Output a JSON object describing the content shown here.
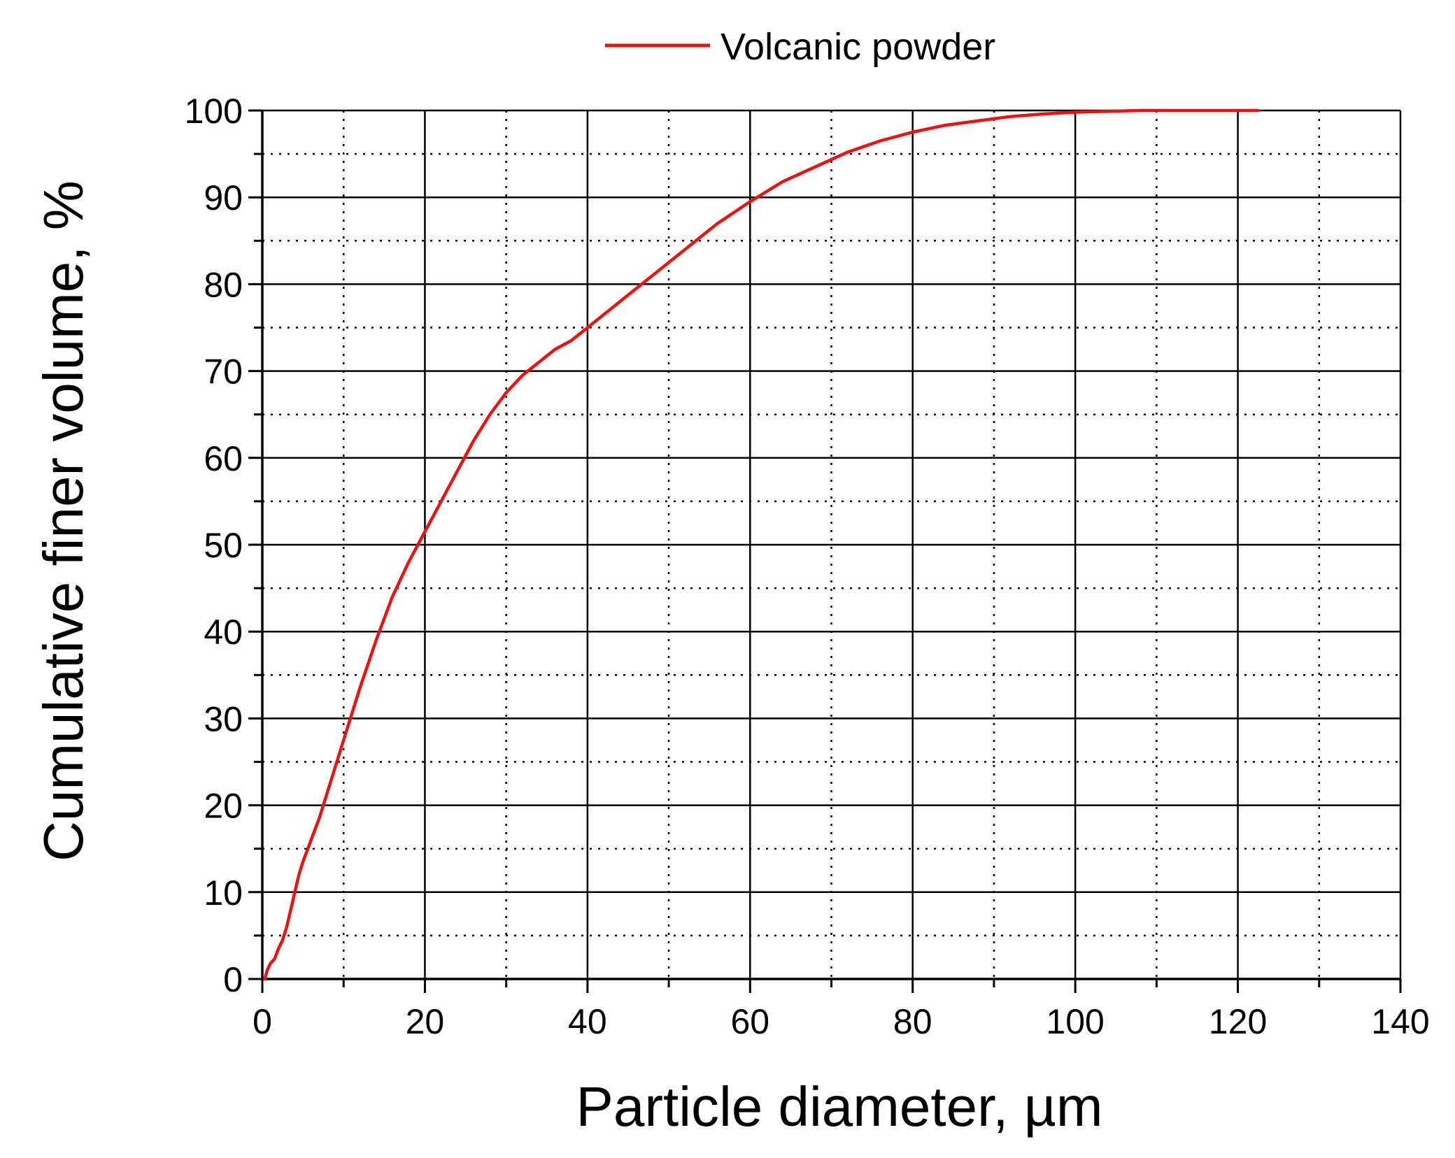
{
  "chart_data": {
    "type": "line",
    "xlabel": "Particle diameter, µm",
    "ylabel": "Cumulative finer volume, %",
    "xlim": [
      0,
      140
    ],
    "ylim": [
      0,
      100
    ],
    "x_ticks": [
      0,
      20,
      40,
      60,
      80,
      100,
      120,
      140
    ],
    "y_ticks": [
      0,
      10,
      20,
      30,
      40,
      50,
      60,
      70,
      80,
      90,
      100
    ],
    "x_tick_labels": [
      "0",
      "20",
      "40",
      "60",
      "80",
      "100",
      "120",
      "140"
    ],
    "y_tick_labels": [
      "0",
      "10",
      "20",
      "30",
      "40",
      "50",
      "60",
      "70",
      "80",
      "90",
      "100"
    ],
    "grid": {
      "major": "solid",
      "minor": "dotted"
    },
    "legend": {
      "position": "top-center"
    },
    "series": [
      {
        "name": "Volcanic powder",
        "color": "#ee1111",
        "x": [
          0.3,
          0.6,
          1.0,
          1.5,
          2.0,
          2.5,
          3.0,
          3.5,
          4.0,
          4.5,
          5.0,
          6.0,
          7.0,
          8.0,
          9.0,
          10.0,
          12.0,
          14.0,
          16.0,
          18.0,
          20.0,
          22.0,
          24.0,
          26.0,
          28.0,
          30.0,
          32.0,
          34.0,
          36.0,
          38.0,
          40.0,
          44.0,
          48.0,
          52.0,
          56.0,
          60.0,
          64.0,
          68.0,
          72.0,
          76.0,
          80.0,
          84.0,
          88.0,
          92.0,
          96.0,
          100.0,
          104.0,
          108.0,
          112.0,
          116.0,
          120.0,
          122.5
        ],
        "y": [
          0,
          1.0,
          1.8,
          2.3,
          3.5,
          4.5,
          6.0,
          8.0,
          10.0,
          12.0,
          13.5,
          16.0,
          18.5,
          21.5,
          24.5,
          27.5,
          33.5,
          39.0,
          44.0,
          48.0,
          51.5,
          55.0,
          58.5,
          62.0,
          65.0,
          67.5,
          69.5,
          71.0,
          72.5,
          73.5,
          75.0,
          78.0,
          81.0,
          84.0,
          87.0,
          89.5,
          91.8,
          93.5,
          95.2,
          96.5,
          97.5,
          98.3,
          98.8,
          99.3,
          99.6,
          99.8,
          99.9,
          100,
          100,
          100,
          100,
          100
        ]
      }
    ]
  }
}
